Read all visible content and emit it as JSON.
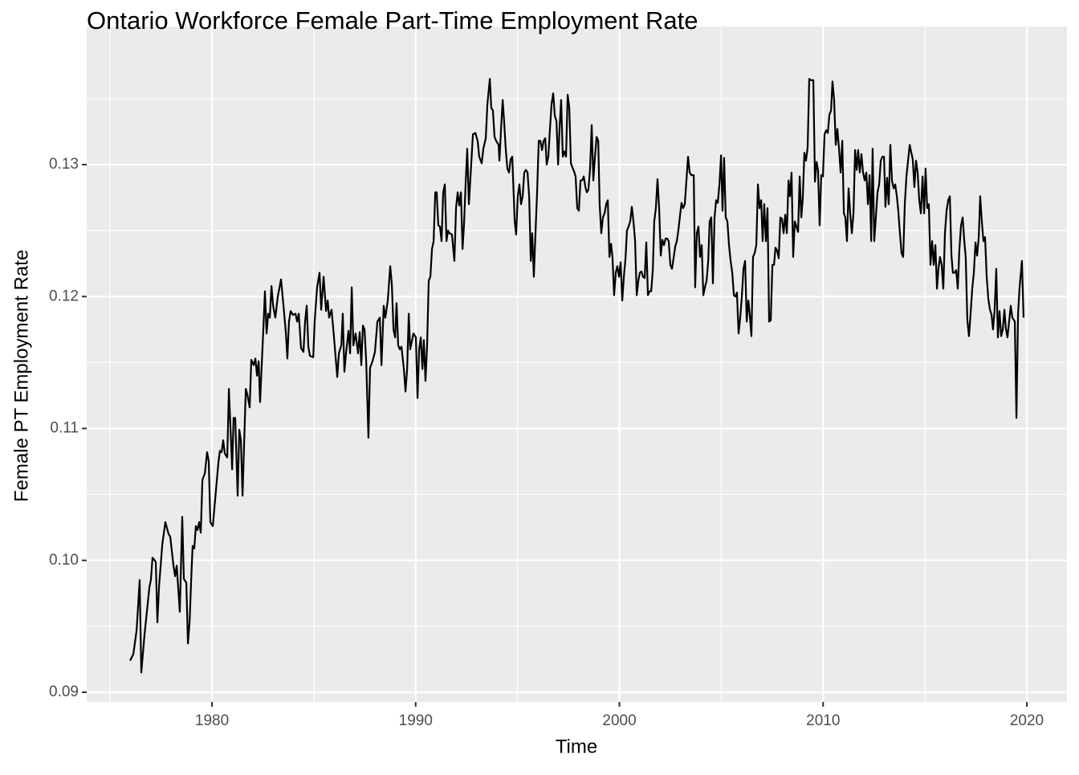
{
  "chart_data": {
    "type": "line",
    "title": "Ontario Workforce Female Part-Time Employment Rate",
    "x_label": "Time",
    "y_label": "Female PT Employment Rate",
    "color": "#000000",
    "grid": true,
    "xlim": [
      1973.85,
      2021.97
    ],
    "ylim": [
      0.08927,
      0.14047
    ],
    "xticks": [
      1980,
      1990,
      2000,
      2010,
      2020
    ],
    "yticks": [
      0.09,
      {
        "value": 0.1,
        "label": "0.10"
      },
      0.11,
      0.12,
      0.13
    ],
    "xminorticks": [
      1975,
      1985,
      1995,
      2005,
      2015
    ],
    "yminorticks": [
      0.095,
      0.105,
      0.115,
      0.125,
      0.135
    ],
    "x": [
      1975.98,
      1976.14,
      1976.3,
      1976.45,
      1976.53,
      1976.69,
      1976.93,
      1977.0,
      1977.08,
      1977.24,
      1977.32,
      1977.4,
      1977.56,
      1977.71,
      1977.87,
      1977.95,
      1978.11,
      1978.19,
      1978.27,
      1978.42,
      1978.54,
      1978.62,
      1978.74,
      1978.82,
      1978.9,
      1978.98,
      1979.05,
      1979.13,
      1979.21,
      1979.29,
      1979.37,
      1979.45,
      1979.53,
      1979.65,
      1979.76,
      1979.84,
      1979.92,
      1980.04,
      1980.16,
      1980.32,
      1980.39,
      1980.47,
      1980.55,
      1980.63,
      1980.75,
      1980.83,
      1980.99,
      1981.06,
      1981.14,
      1981.26,
      1981.34,
      1981.42,
      1981.5,
      1981.66,
      1981.73,
      1981.85,
      1981.93,
      1982.05,
      1982.13,
      1982.21,
      1982.29,
      1982.36,
      1982.52,
      1982.6,
      1982.68,
      1982.76,
      1982.84,
      1982.92,
      1983.0,
      1983.11,
      1983.23,
      1983.39,
      1983.51,
      1983.63,
      1983.7,
      1983.78,
      1983.86,
      1983.98,
      1984.1,
      1984.18,
      1984.26,
      1984.37,
      1984.49,
      1984.57,
      1984.65,
      1984.73,
      1984.81,
      1984.97,
      1985.04,
      1985.16,
      1985.28,
      1985.36,
      1985.48,
      1985.6,
      1985.68,
      1985.75,
      1985.87,
      1985.99,
      1986.15,
      1986.23,
      1986.35,
      1986.42,
      1986.5,
      1986.58,
      1986.7,
      1986.78,
      1986.86,
      1986.94,
      1987.05,
      1987.17,
      1987.25,
      1987.33,
      1987.41,
      1987.49,
      1987.57,
      1987.68,
      1987.76,
      1987.88,
      1988.0,
      1988.12,
      1988.24,
      1988.32,
      1988.43,
      1988.51,
      1988.63,
      1988.75,
      1988.83,
      1988.91,
      1988.99,
      1989.06,
      1989.14,
      1989.22,
      1989.3,
      1989.42,
      1989.5,
      1989.58,
      1989.66,
      1989.73,
      1989.81,
      1989.89,
      1990.01,
      1990.09,
      1990.17,
      1990.25,
      1990.33,
      1990.4,
      1990.48,
      1990.56,
      1990.64,
      1990.72,
      1990.8,
      1990.88,
      1990.96,
      1991.03,
      1991.11,
      1991.19,
      1991.27,
      1991.35,
      1991.43,
      1991.51,
      1991.59,
      1991.66,
      1991.78,
      1991.9,
      1991.98,
      1992.06,
      1992.14,
      1992.22,
      1992.3,
      1992.37,
      1992.45,
      1992.53,
      1992.61,
      1992.69,
      1992.81,
      1992.93,
      1993.04,
      1993.12,
      1993.24,
      1993.32,
      1993.44,
      1993.52,
      1993.64,
      1993.71,
      1993.79,
      1993.87,
      1993.95,
      1994.07,
      1994.11,
      1994.19,
      1994.27,
      1994.34,
      1994.42,
      1994.5,
      1994.58,
      1994.66,
      1994.74,
      1994.86,
      1994.93,
      1995.01,
      1995.09,
      1995.17,
      1995.25,
      1995.33,
      1995.41,
      1995.49,
      1995.57,
      1995.65,
      1995.72,
      1995.8,
      1995.88,
      1995.96,
      1996.04,
      1996.12,
      1996.2,
      1996.28,
      1996.36,
      1996.43,
      1996.51,
      1996.59,
      1996.67,
      1996.75,
      1996.83,
      1996.91,
      1996.99,
      1997.06,
      1997.14,
      1997.22,
      1997.3,
      1997.38,
      1997.46,
      1997.54,
      1997.62,
      1997.69,
      1997.77,
      1997.85,
      1997.93,
      1998.01,
      1998.09,
      1998.17,
      1998.25,
      1998.33,
      1998.4,
      1998.48,
      1998.56,
      1998.64,
      1998.72,
      1998.8,
      1998.88,
      1998.96,
      1999.03,
      1999.11,
      1999.19,
      1999.27,
      1999.35,
      1999.43,
      1999.51,
      1999.59,
      1999.66,
      1999.74,
      1999.82,
      1999.9,
      1999.98,
      2000.06,
      2000.14,
      2000.22,
      2000.3,
      2000.37,
      2000.45,
      2000.53,
      2000.61,
      2000.69,
      2000.77,
      2000.85,
      2000.93,
      2001.0,
      2001.08,
      2001.16,
      2001.24,
      2001.32,
      2001.4,
      2001.48,
      2001.56,
      2001.64,
      2001.71,
      2001.79,
      2001.87,
      2001.95,
      2002.03,
      2002.11,
      2002.19,
      2002.27,
      2002.34,
      2002.42,
      2002.5,
      2002.58,
      2002.66,
      2002.74,
      2002.82,
      2002.9,
      2002.98,
      2003.05,
      2003.13,
      2003.21,
      2003.29,
      2003.37,
      2003.45,
      2003.53,
      2003.65,
      2003.72,
      2003.8,
      2003.88,
      2003.96,
      2004.04,
      2004.12,
      2004.2,
      2004.28,
      2004.36,
      2004.43,
      2004.51,
      2004.59,
      2004.67,
      2004.75,
      2004.83,
      2004.91,
      2004.99,
      2005.06,
      2005.14,
      2005.22,
      2005.3,
      2005.38,
      2005.46,
      2005.54,
      2005.62,
      2005.69,
      2005.77,
      2005.85,
      2005.93,
      2006.01,
      2006.09,
      2006.17,
      2006.25,
      2006.33,
      2006.4,
      2006.48,
      2006.56,
      2006.64,
      2006.72,
      2006.8,
      2006.88,
      2006.96,
      2007.03,
      2007.11,
      2007.19,
      2007.27,
      2007.35,
      2007.43,
      2007.51,
      2007.59,
      2007.66,
      2007.74,
      2007.82,
      2007.9,
      2007.98,
      2008.06,
      2008.14,
      2008.22,
      2008.3,
      2008.37,
      2008.45,
      2008.53,
      2008.61,
      2008.69,
      2008.77,
      2008.85,
      2008.93,
      2009.0,
      2009.08,
      2009.16,
      2009.24,
      2009.32,
      2009.4,
      2009.52,
      2009.6,
      2009.68,
      2009.75,
      2009.83,
      2009.91,
      2009.99,
      2010.07,
      2010.15,
      2010.23,
      2010.31,
      2010.39,
      2010.46,
      2010.54,
      2010.62,
      2010.7,
      2010.78,
      2010.86,
      2010.94,
      2011.02,
      2011.09,
      2011.17,
      2011.25,
      2011.33,
      2011.41,
      2011.49,
      2011.57,
      2011.65,
      2011.72,
      2011.8,
      2011.88,
      2011.96,
      2012.04,
      2012.12,
      2012.2,
      2012.28,
      2012.36,
      2012.43,
      2012.51,
      2012.59,
      2012.67,
      2012.75,
      2012.83,
      2012.91,
      2012.99,
      2013.06,
      2013.14,
      2013.22,
      2013.3,
      2013.38,
      2013.46,
      2013.54,
      2013.62,
      2013.69,
      2013.77,
      2013.85,
      2013.93,
      2014.01,
      2014.09,
      2014.17,
      2014.25,
      2014.33,
      2014.4,
      2014.48,
      2014.56,
      2014.64,
      2014.72,
      2014.8,
      2014.88,
      2014.96,
      2015.03,
      2015.11,
      2015.19,
      2015.27,
      2015.35,
      2015.43,
      2015.51,
      2015.59,
      2015.66,
      2015.74,
      2015.82,
      2015.9,
      2015.98,
      2016.06,
      2016.14,
      2016.22,
      2016.3,
      2016.37,
      2016.45,
      2016.53,
      2016.61,
      2016.69,
      2016.77,
      2016.85,
      2016.93,
      2017.0,
      2017.08,
      2017.16,
      2017.24,
      2017.32,
      2017.4,
      2017.48,
      2017.56,
      2017.64,
      2017.71,
      2017.79,
      2017.87,
      2017.95,
      2018.03,
      2018.11,
      2018.19,
      2018.27,
      2018.34,
      2018.42,
      2018.5,
      2018.58,
      2018.66,
      2018.74,
      2018.82,
      2018.9,
      2018.97,
      2019.05,
      2019.13,
      2019.21,
      2019.29,
      2019.41,
      2019.49,
      2019.57,
      2019.64,
      2019.76,
      2019.84
    ],
    "values": [
      0.0924,
      0.0929,
      0.0947,
      0.0985,
      0.0915,
      0.0944,
      0.098,
      0.0985,
      0.1002,
      0.0999,
      0.0953,
      0.098,
      0.1012,
      0.1029,
      0.102,
      0.1018,
      0.0996,
      0.0988,
      0.0996,
      0.0961,
      0.1033,
      0.0986,
      0.0983,
      0.0937,
      0.0953,
      0.0986,
      0.1011,
      0.1009,
      0.1026,
      0.1023,
      0.1029,
      0.1021,
      0.1061,
      0.1066,
      0.1082,
      0.1075,
      0.1029,
      0.1026,
      0.1047,
      0.1075,
      0.1083,
      0.1082,
      0.1091,
      0.1081,
      0.1078,
      0.113,
      0.1069,
      0.1108,
      0.1108,
      0.1049,
      0.1099,
      0.1091,
      0.1049,
      0.113,
      0.1126,
      0.1116,
      0.1152,
      0.1148,
      0.1153,
      0.114,
      0.1151,
      0.112,
      0.1175,
      0.1204,
      0.1172,
      0.1187,
      0.1184,
      0.1208,
      0.1193,
      0.1184,
      0.12,
      0.1213,
      0.1193,
      0.1172,
      0.1153,
      0.1181,
      0.1189,
      0.1186,
      0.1187,
      0.1181,
      0.1187,
      0.1161,
      0.1158,
      0.1181,
      0.1193,
      0.1162,
      0.1155,
      0.1154,
      0.1181,
      0.1207,
      0.1218,
      0.119,
      0.1215,
      0.1189,
      0.1197,
      0.1184,
      0.119,
      0.1169,
      0.1139,
      0.1157,
      0.1163,
      0.1187,
      0.1143,
      0.1157,
      0.1174,
      0.1157,
      0.1207,
      0.1163,
      0.1172,
      0.1157,
      0.1173,
      0.1148,
      0.1178,
      0.1175,
      0.1151,
      0.1093,
      0.1146,
      0.1151,
      0.1158,
      0.1181,
      0.1184,
      0.1148,
      0.1193,
      0.1184,
      0.1197,
      0.1223,
      0.1209,
      0.1175,
      0.1169,
      0.1195,
      0.1163,
      0.116,
      0.1162,
      0.1145,
      0.1128,
      0.1145,
      0.1187,
      0.116,
      0.1166,
      0.1172,
      0.1169,
      0.1123,
      0.116,
      0.1169,
      0.1145,
      0.1167,
      0.1136,
      0.1163,
      0.1212,
      0.1215,
      0.1236,
      0.1242,
      0.1279,
      0.1279,
      0.1254,
      0.1253,
      0.1242,
      0.1279,
      0.1285,
      0.1242,
      0.125,
      0.1248,
      0.1247,
      0.1227,
      0.1267,
      0.1279,
      0.1269,
      0.1279,
      0.1236,
      0.1254,
      0.1285,
      0.1312,
      0.127,
      0.1291,
      0.1323,
      0.1324,
      0.1318,
      0.1306,
      0.1301,
      0.1312,
      0.132,
      0.1346,
      0.1365,
      0.1343,
      0.1341,
      0.1321,
      0.1318,
      0.1315,
      0.1303,
      0.1327,
      0.1349,
      0.1333,
      0.1312,
      0.1297,
      0.1294,
      0.1304,
      0.1306,
      0.1257,
      0.1247,
      0.1276,
      0.1285,
      0.127,
      0.1276,
      0.1294,
      0.1296,
      0.1294,
      0.1276,
      0.1227,
      0.1248,
      0.1215,
      0.1248,
      0.1279,
      0.1318,
      0.1318,
      0.1311,
      0.1318,
      0.132,
      0.13,
      0.1306,
      0.1327,
      0.1346,
      0.1354,
      0.1337,
      0.1333,
      0.13,
      0.1327,
      0.1349,
      0.1306,
      0.131,
      0.1306,
      0.1353,
      0.1343,
      0.1301,
      0.1298,
      0.1295,
      0.1291,
      0.1267,
      0.1265,
      0.1288,
      0.1288,
      0.1291,
      0.1283,
      0.1279,
      0.1281,
      0.1297,
      0.133,
      0.1288,
      0.1306,
      0.1321,
      0.1318,
      0.127,
      0.1248,
      0.126,
      0.1263,
      0.127,
      0.1273,
      0.123,
      0.124,
      0.123,
      0.1201,
      0.1218,
      0.1223,
      0.1215,
      0.1226,
      0.1197,
      0.1215,
      0.1229,
      0.125,
      0.1253,
      0.1257,
      0.1268,
      0.1257,
      0.1242,
      0.1201,
      0.1212,
      0.1218,
      0.1219,
      0.1215,
      0.1214,
      0.1241,
      0.1201,
      0.1204,
      0.1204,
      0.122,
      0.1257,
      0.1267,
      0.1289,
      0.1267,
      0.1231,
      0.1243,
      0.1239,
      0.1244,
      0.1244,
      0.1242,
      0.1224,
      0.1221,
      0.1229,
      0.1238,
      0.1242,
      0.1251,
      0.1262,
      0.1271,
      0.1267,
      0.127,
      0.1288,
      0.1306,
      0.1294,
      0.1292,
      0.1292,
      0.1207,
      0.1248,
      0.1253,
      0.123,
      0.1239,
      0.1201,
      0.1207,
      0.1212,
      0.1227,
      0.1257,
      0.126,
      0.121,
      0.126,
      0.1273,
      0.1271,
      0.1285,
      0.1307,
      0.1265,
      0.1305,
      0.126,
      0.1257,
      0.1239,
      0.1227,
      0.1218,
      0.1201,
      0.12,
      0.1203,
      0.1172,
      0.1184,
      0.12,
      0.1221,
      0.1227,
      0.1181,
      0.1197,
      0.1186,
      0.117,
      0.123,
      0.1233,
      0.1239,
      0.1285,
      0.1267,
      0.1273,
      0.1242,
      0.127,
      0.1242,
      0.1267,
      0.1181,
      0.1182,
      0.1224,
      0.1224,
      0.1237,
      0.1235,
      0.1229,
      0.126,
      0.1259,
      0.1248,
      0.1262,
      0.1248,
      0.1288,
      0.1276,
      0.1294,
      0.123,
      0.1257,
      0.1253,
      0.1249,
      0.1291,
      0.126,
      0.1274,
      0.1309,
      0.1303,
      0.1313,
      0.1365,
      0.1364,
      0.1364,
      0.1287,
      0.1302,
      0.1296,
      0.1254,
      0.1292,
      0.1291,
      0.1323,
      0.1326,
      0.1324,
      0.1338,
      0.1341,
      0.1363,
      0.1349,
      0.1315,
      0.1327,
      0.1312,
      0.1294,
      0.1318,
      0.1263,
      0.126,
      0.1242,
      0.1282,
      0.1263,
      0.1248,
      0.1263,
      0.1311,
      0.1296,
      0.1311,
      0.1294,
      0.1308,
      0.1294,
      0.1288,
      0.1294,
      0.127,
      0.1292,
      0.1242,
      0.1312,
      0.1242,
      0.126,
      0.1279,
      0.1285,
      0.1303,
      0.1306,
      0.1306,
      0.1268,
      0.129,
      0.127,
      0.1315,
      0.1288,
      0.1282,
      0.1285,
      0.1276,
      0.1265,
      0.1248,
      0.1233,
      0.123,
      0.127,
      0.1291,
      0.1303,
      0.1315,
      0.1309,
      0.1304,
      0.1283,
      0.1303,
      0.1294,
      0.1273,
      0.1263,
      0.1291,
      0.1263,
      0.1297,
      0.1267,
      0.127,
      0.1224,
      0.1242,
      0.1224,
      0.1239,
      0.1206,
      0.1221,
      0.123,
      0.1224,
      0.1206,
      0.1248,
      0.1265,
      0.1273,
      0.1276,
      0.1231,
      0.1218,
      0.1218,
      0.122,
      0.1206,
      0.1236,
      0.1254,
      0.126,
      0.1242,
      0.123,
      0.1182,
      0.117,
      0.1187,
      0.1206,
      0.1218,
      0.1241,
      0.1231,
      0.1245,
      0.1276,
      0.1257,
      0.1242,
      0.1245,
      0.1215,
      0.1198,
      0.119,
      0.1186,
      0.1175,
      0.119,
      0.1221,
      0.1169,
      0.1189,
      0.117,
      0.1175,
      0.119,
      0.1176,
      0.1169,
      0.1181,
      0.1193,
      0.1184,
      0.1181,
      0.1108,
      0.1187,
      0.1206,
      0.1227,
      0.1184
    ]
  }
}
